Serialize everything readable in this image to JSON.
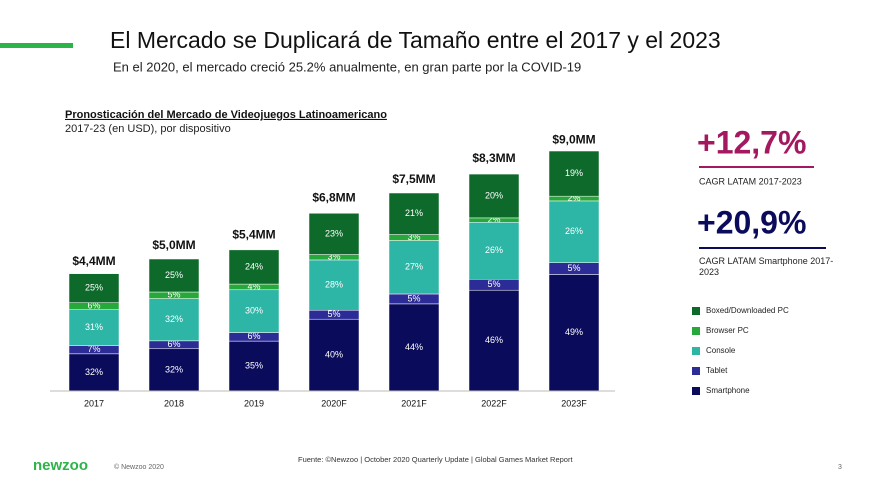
{
  "slide": {
    "title": "El Mercado se Duplicará de Tamaño entre el 2017 y el 2023",
    "subtitle": "En el 2020, el mercado creció 25.2% anualmente, en gran parte por la COVID-19",
    "kpis": [
      {
        "value": "+12,7%",
        "label": "CAGR LATAM 2017-2023",
        "color": "#a3185f"
      },
      {
        "value": "+20,9%",
        "label": "CAGR LATAM Smartphone 2017-2023",
        "color": "#0b0b5c"
      }
    ],
    "source": "Fuente: ©Newzoo | October 2020 Quarterly Update | Global Games Market Report",
    "logo": "newzoo",
    "copyright": "© Newzoo 2020",
    "page": "3"
  },
  "chart_data": {
    "type": "stacked_bar",
    "title": "Pronosticación del Mercado de Videojuegos Latinoamericano",
    "subtitle": "2017-23 (en USD), por dispositivo",
    "categories": [
      "2017",
      "2018",
      "2019",
      "2020F",
      "2021F",
      "2022F",
      "2023F"
    ],
    "totals": {
      "values": [
        4.4,
        5.0,
        5.4,
        6.8,
        7.5,
        8.3,
        9.0
      ],
      "value_labels": [
        "$4,4MM",
        "$5,0MM",
        "$5,4MM",
        "$6,8MM",
        "$7,5MM",
        "$8,3MM",
        "$9,0MM"
      ]
    },
    "series": [
      {
        "name": "Smartphone",
        "color": "#0b0b5c",
        "values": [
          32,
          32,
          35,
          40,
          44,
          46,
          49
        ],
        "value_labels": [
          "32%",
          "32%",
          "35%",
          "40%",
          "44%",
          "46%",
          "49%"
        ]
      },
      {
        "name": "Tablet",
        "color": "#2c2c96",
        "values": [
          7,
          6,
          6,
          5,
          5,
          5,
          5
        ],
        "value_labels": [
          "7%",
          "6%",
          "6%",
          "5%",
          "5%",
          "5%",
          "5%"
        ]
      },
      {
        "name": "Console",
        "color": "#2db5a6",
        "values": [
          31,
          32,
          30,
          28,
          27,
          26,
          26
        ],
        "value_labels": [
          "31%",
          "32%",
          "30%",
          "28%",
          "27%",
          "26%",
          "26%"
        ]
      },
      {
        "name": "Browser PC",
        "color": "#27a83a",
        "values": [
          6,
          5,
          4,
          3,
          3,
          2,
          2
        ],
        "value_labels": [
          "6%",
          "5%",
          "4%",
          "3%",
          "3%",
          "2%",
          "2%"
        ]
      },
      {
        "name": "Boxed/Downloaded PC",
        "color": "#0e6a2b",
        "values": [
          25,
          25,
          24,
          23,
          21,
          20,
          19
        ],
        "value_labels": [
          "25%",
          "25%",
          "24%",
          "23%",
          "21%",
          "20%",
          "19%"
        ]
      }
    ]
  }
}
